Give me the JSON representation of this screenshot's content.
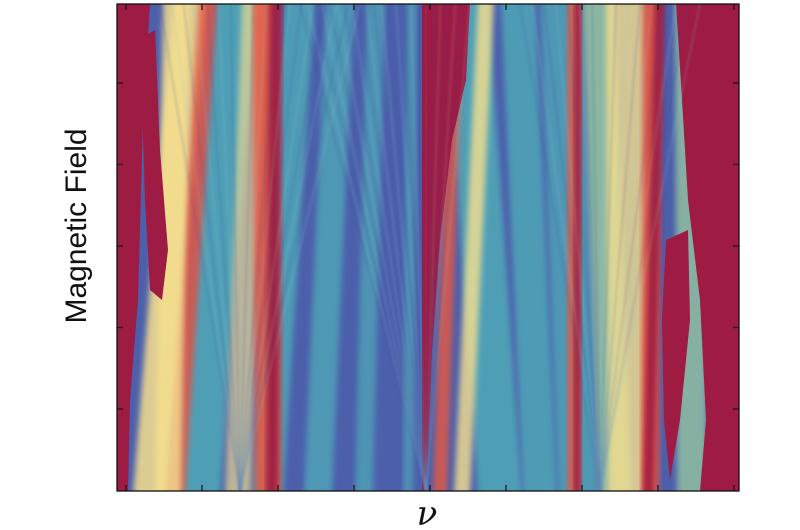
{
  "chart_data": {
    "type": "heatmap",
    "title": "",
    "xlabel": "ν",
    "ylabel": "Magnetic Field",
    "x_tick_count": 9,
    "y_tick_count": 6,
    "x_tick_labels": [],
    "y_tick_labels": [],
    "colormap": "spectral",
    "colormap_stops": [
      "#9e0142",
      "#d53e4f",
      "#f46d43",
      "#fdae61",
      "#fee08b",
      "#e6f598",
      "#abdda4",
      "#66c2a5",
      "#3288bd",
      "#5e4fa2"
    ],
    "dominant_colors": {
      "saturated_red": "#9e1b43",
      "deep_blue": "#4e62ad",
      "teal": "#4fa6b8",
      "yellow": "#f7e08e"
    },
    "grid": false,
    "colorbar": false
  }
}
